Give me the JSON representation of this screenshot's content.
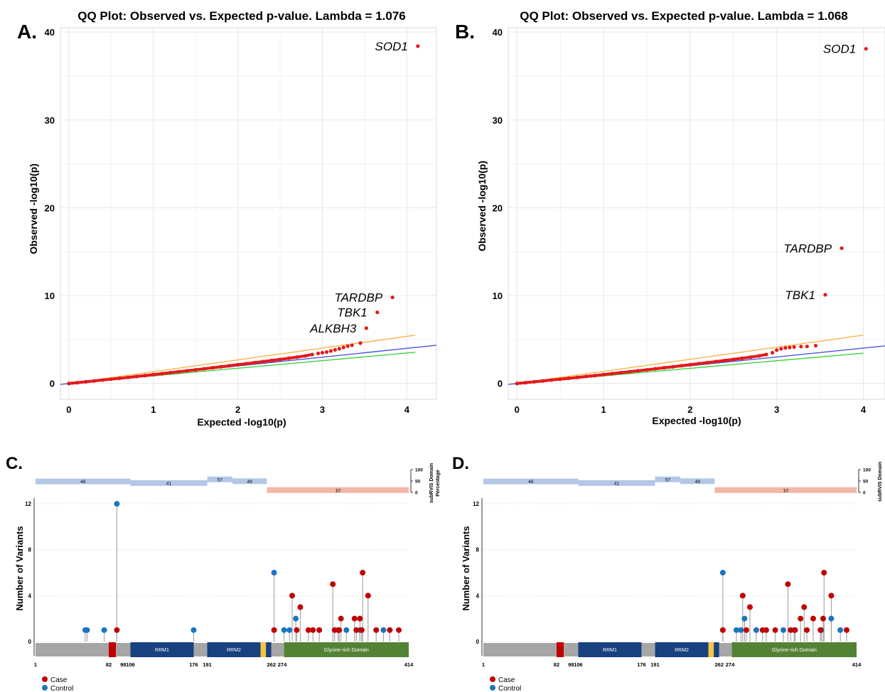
{
  "colors": {
    "red": "#e41a1c",
    "orange": "#f8b54a",
    "blue_line": "#5055e0",
    "green_line": "#3fd43f",
    "grid": "#e6e6e6",
    "case": "#c00000",
    "control": "#1a75c0",
    "domain_gray": "#a6a6a6",
    "domain_red": "#c00000",
    "domain_navy": "#17417f",
    "domain_yellow": "#f6c342",
    "domain_green": "#548235",
    "bar_blue": "#b4c7e7",
    "bar_pink": "#f4b6a6"
  },
  "qq_panels": [
    {
      "panel": "A.",
      "title": "QQ Plot: Observed vs. Expected p-value. Lambda = 1.076",
      "xlabel": "Expected -log10(p)",
      "ylabel": "Observed -log10(p)",
      "xticks": [
        "0",
        "1",
        "2",
        "3",
        "4"
      ],
      "yticks": [
        "0",
        "10",
        "20",
        "30",
        "40"
      ],
      "labels": [
        {
          "text": "SOD1",
          "x": 4.13,
          "y": 38.4
        },
        {
          "text": "TARDBP",
          "x": 3.83,
          "y": 9.8
        },
        {
          "text": "TBK1",
          "x": 3.65,
          "y": 8.1
        },
        {
          "text": "ALKBH3",
          "x": 3.52,
          "y": 6.3
        }
      ]
    },
    {
      "panel": "B.",
      "title": "QQ Plot: Observed vs. Expected p-value. Lambda = 1.068",
      "xlabel": "Expected -log10(p)",
      "ylabel": "Observed -log10(p)",
      "xticks": [
        "0",
        "1",
        "2",
        "3",
        "4"
      ],
      "yticks": [
        "0",
        "10",
        "20",
        "30",
        "40"
      ],
      "labels": [
        {
          "text": "SOD1",
          "x": 4.03,
          "y": 38.1
        },
        {
          "text": "TARDBP",
          "x": 3.75,
          "y": 15.4
        },
        {
          "text": "TBK1",
          "x": 3.56,
          "y": 10.1
        }
      ]
    }
  ],
  "lollipop_panels": [
    {
      "panel": "C.",
      "right_label_1": "subRVIS Domain",
      "right_label_2": "Percentage"
    },
    {
      "panel": "D.",
      "right_label_1": "subRVIS Domain",
      "right_label_2": ""
    }
  ],
  "lollipop_common": {
    "ylabel": "Number of Variants",
    "yticks": [
      "0",
      "4",
      "8",
      "12"
    ],
    "bar_ticks": [
      "100",
      "50",
      "0"
    ],
    "pos_labels": [
      "1",
      "82",
      "98",
      "106",
      "176",
      "191",
      "262",
      "274",
      "414"
    ],
    "domain_labels": {
      "rrm1": "RRM1",
      "rrm2": "RRM2",
      "gly": "Glycine-rich Domain"
    },
    "subrvis_labels": [
      "48",
      "41",
      "57",
      "49",
      "10"
    ],
    "legend": {
      "case": "Case",
      "control": "Control"
    }
  },
  "chart_data": [
    {
      "type": "scatter",
      "title": "QQ Plot: Observed vs. Expected p-value. Lambda = 1.076",
      "xlabel": "Expected -log10(p)",
      "ylabel": "Observed -log10(p)",
      "xlim": [
        -0.1,
        4.35
      ],
      "ylim": [
        -1.8,
        40.5
      ],
      "grid": true,
      "series": [
        {
          "points": [
            [
              0,
              0
            ],
            [
              0.1,
              0.09
            ],
            [
              0.2,
              0.19
            ],
            [
              0.3,
              0.29
            ],
            [
              0.4,
              0.39
            ],
            [
              0.5,
              0.49
            ],
            [
              0.6,
              0.59
            ],
            [
              0.7,
              0.69
            ],
            [
              0.8,
              0.8
            ],
            [
              0.9,
              0.9
            ],
            [
              1.0,
              1.01
            ],
            [
              1.1,
              1.12
            ],
            [
              1.2,
              1.23
            ],
            [
              1.3,
              1.34
            ],
            [
              1.4,
              1.45
            ],
            [
              1.5,
              1.56
            ],
            [
              1.6,
              1.67
            ],
            [
              1.7,
              1.79
            ],
            [
              1.8,
              1.9
            ],
            [
              1.9,
              2.02
            ],
            [
              2.0,
              2.14
            ],
            [
              2.1,
              2.26
            ],
            [
              2.2,
              2.38
            ],
            [
              2.3,
              2.5
            ],
            [
              2.4,
              2.62
            ],
            [
              2.5,
              2.74
            ],
            [
              2.6,
              2.87
            ],
            [
              2.7,
              3.0
            ],
            [
              2.8,
              3.15
            ],
            [
              2.88,
              3.3
            ],
            [
              2.95,
              3.42
            ],
            [
              3.0,
              3.5
            ],
            [
              3.05,
              3.58
            ],
            [
              3.1,
              3.7
            ],
            [
              3.15,
              3.83
            ],
            [
              3.2,
              3.95
            ],
            [
              3.25,
              4.1
            ],
            [
              3.3,
              4.25
            ],
            [
              3.35,
              4.35
            ],
            [
              3.45,
              4.6
            ],
            [
              3.52,
              6.3
            ],
            [
              3.65,
              8.1
            ],
            [
              3.83,
              9.8
            ],
            [
              4.13,
              38.4
            ]
          ]
        },
        {
          "name": "",
          "line": [
            [
              0,
              0
            ],
            [
              4.1,
              5.5
            ]
          ]
        },
        {
          "name": "",
          "line": [
            [
              -0.1,
              -0.11
            ],
            [
              4.35,
              4.35
            ]
          ]
        },
        {
          "name": "",
          "line": [
            [
              0,
              0
            ],
            [
              4.1,
              3.55
            ]
          ]
        }
      ]
    },
    {
      "type": "scatter",
      "title": "QQ Plot: Observed vs. Expected p-value. Lambda = 1.068",
      "xlabel": "Expected -log10(p)",
      "ylabel": "Observed -log10(p)",
      "xlim": [
        -0.1,
        4.25
      ],
      "ylim": [
        -1.8,
        40.5
      ],
      "grid": true,
      "series": [
        {
          "points": [
            [
              0,
              0
            ],
            [
              0.1,
              0.09
            ],
            [
              0.2,
              0.19
            ],
            [
              0.3,
              0.29
            ],
            [
              0.4,
              0.39
            ],
            [
              0.5,
              0.49
            ],
            [
              0.6,
              0.59
            ],
            [
              0.7,
              0.69
            ],
            [
              0.8,
              0.8
            ],
            [
              0.9,
              0.9
            ],
            [
              1.0,
              1.01
            ],
            [
              1.1,
              1.12
            ],
            [
              1.2,
              1.23
            ],
            [
              1.3,
              1.34
            ],
            [
              1.4,
              1.45
            ],
            [
              1.5,
              1.56
            ],
            [
              1.6,
              1.67
            ],
            [
              1.7,
              1.79
            ],
            [
              1.8,
              1.9
            ],
            [
              1.9,
              2.02
            ],
            [
              2.0,
              2.14
            ],
            [
              2.1,
              2.26
            ],
            [
              2.2,
              2.38
            ],
            [
              2.3,
              2.5
            ],
            [
              2.4,
              2.62
            ],
            [
              2.5,
              2.74
            ],
            [
              2.6,
              2.87
            ],
            [
              2.7,
              3.0
            ],
            [
              2.8,
              3.15
            ],
            [
              2.88,
              3.3
            ],
            [
              2.95,
              3.5
            ],
            [
              3.0,
              3.8
            ],
            [
              3.05,
              3.95
            ],
            [
              3.1,
              4.05
            ],
            [
              3.15,
              4.1
            ],
            [
              3.2,
              4.15
            ],
            [
              3.28,
              4.2
            ],
            [
              3.35,
              4.22
            ],
            [
              3.45,
              4.3
            ],
            [
              3.56,
              10.1
            ],
            [
              3.75,
              15.4
            ],
            [
              4.03,
              38.1
            ]
          ]
        },
        {
          "name": "",
          "line": [
            [
              0,
              0
            ],
            [
              4.0,
              5.5
            ]
          ]
        },
        {
          "name": "",
          "line": [
            [
              -0.1,
              -0.11
            ],
            [
              4.25,
              4.28
            ]
          ]
        },
        {
          "name": "",
          "line": [
            [
              0,
              0
            ],
            [
              4.0,
              3.45
            ]
          ]
        }
      ]
    },
    {
      "type": "bar",
      "ylabel": "Number of Variants",
      "xlim": [
        1,
        414
      ],
      "ylim": [
        0,
        12.5
      ],
      "domains": [
        {
          "start": 1,
          "end": 82,
          "kind": "gray"
        },
        {
          "start": 82,
          "end": 90,
          "kind": "red"
        },
        {
          "start": 90,
          "end": 106,
          "kind": "gray"
        },
        {
          "start": 106,
          "end": 176,
          "kind": "navy",
          "label": "RRM1"
        },
        {
          "start": 176,
          "end": 191,
          "kind": "gray"
        },
        {
          "start": 191,
          "end": 250,
          "kind": "navy",
          "label": "RRM2"
        },
        {
          "start": 250,
          "end": 256,
          "kind": "yellow"
        },
        {
          "start": 256,
          "end": 262,
          "kind": "navy"
        },
        {
          "start": 262,
          "end": 276,
          "kind": "gray"
        },
        {
          "start": 276,
          "end": 414,
          "kind": "green",
          "label": "Glycine-rich Domain"
        }
      ],
      "subrvis": [
        {
          "start": 1,
          "end": 106,
          "value": 48,
          "color": "blue"
        },
        {
          "start": 106,
          "end": 191,
          "value": 41,
          "color": "blue"
        },
        {
          "start": 191,
          "end": 219,
          "value": 57,
          "color": "blue"
        },
        {
          "start": 219,
          "end": 257,
          "value": 49,
          "color": "blue"
        },
        {
          "start": 257,
          "end": 414,
          "value": 10,
          "color": "pink"
        }
      ],
      "series": [
        {
          "name": "Case",
          "pos": [
            91,
            265,
            285,
            290,
            294,
            303,
            308,
            315,
            330,
            332,
            336,
            337,
            339,
            354,
            356,
            360,
            362,
            363,
            369,
            378,
            393,
            403
          ],
          "values": [
            1,
            1,
            4,
            1,
            3,
            1,
            1,
            1,
            5,
            1,
            1,
            1,
            2,
            2,
            1,
            2,
            1,
            6,
            4,
            1,
            1,
            1
          ]
        },
        {
          "name": "Control",
          "pos": [
            56,
            58,
            77,
            91,
            176,
            265,
            276,
            282,
            289,
            345,
            360,
            386
          ],
          "values": [
            1,
            1,
            1,
            12,
            1,
            6,
            1,
            1,
            2,
            1,
            1,
            1
          ]
        }
      ]
    },
    {
      "type": "bar",
      "ylabel": "Number of Variants",
      "xlim": [
        1,
        414
      ],
      "ylim": [
        0,
        12.5
      ],
      "domains": [
        {
          "start": 1,
          "end": 82,
          "kind": "gray"
        },
        {
          "start": 82,
          "end": 90,
          "kind": "red"
        },
        {
          "start": 90,
          "end": 106,
          "kind": "gray"
        },
        {
          "start": 106,
          "end": 176,
          "kind": "navy",
          "label": "RRM1"
        },
        {
          "start": 176,
          "end": 191,
          "kind": "gray"
        },
        {
          "start": 191,
          "end": 250,
          "kind": "navy",
          "label": "RRM2"
        },
        {
          "start": 250,
          "end": 256,
          "kind": "yellow"
        },
        {
          "start": 256,
          "end": 262,
          "kind": "navy"
        },
        {
          "start": 262,
          "end": 276,
          "kind": "gray"
        },
        {
          "start": 276,
          "end": 414,
          "kind": "green",
          "label": "Glycine-rich Domain"
        }
      ],
      "subrvis": [
        {
          "start": 1,
          "end": 106,
          "value": 48,
          "color": "blue"
        },
        {
          "start": 106,
          "end": 191,
          "value": 41,
          "color": "blue"
        },
        {
          "start": 191,
          "end": 219,
          "value": 57,
          "color": "blue"
        },
        {
          "start": 219,
          "end": 257,
          "value": 49,
          "color": "blue"
        },
        {
          "start": 257,
          "end": 414,
          "value": 10,
          "color": "pink"
        }
      ],
      "series": [
        {
          "name": "Case",
          "pos": [
            266,
            288,
            292,
            296,
            310,
            314,
            324,
            338,
            341,
            346,
            352,
            356,
            359,
            366,
            374,
            377,
            378,
            386,
            403
          ],
          "values": [
            1,
            4,
            1,
            3,
            1,
            1,
            1,
            5,
            1,
            1,
            2,
            3,
            1,
            2,
            1,
            2,
            6,
            4,
            1
          ]
        },
        {
          "name": "Control",
          "pos": [
            266,
            281,
            286,
            290,
            303,
            333,
            345,
            375,
            386,
            396
          ],
          "values": [
            6,
            1,
            1,
            2,
            1,
            1,
            1,
            1,
            2,
            1
          ]
        }
      ]
    }
  ]
}
